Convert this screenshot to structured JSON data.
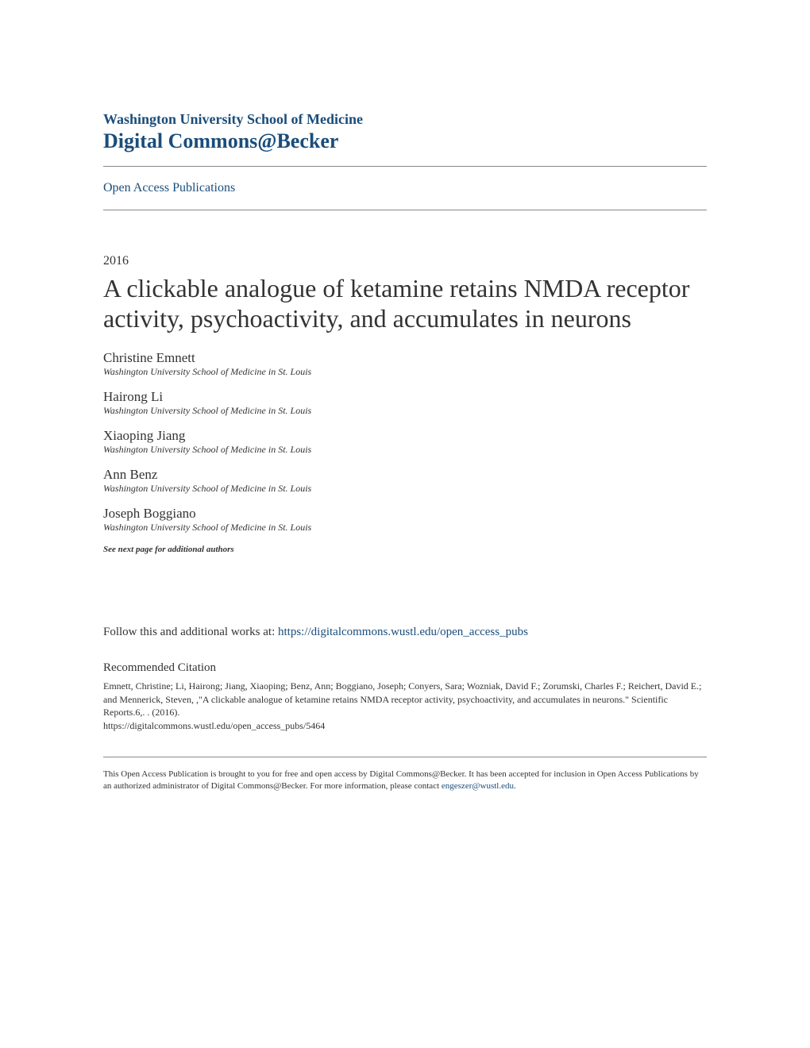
{
  "header": {
    "institution": "Washington University School of Medicine",
    "commons": "Digital Commons@Becker",
    "section": "Open Access Publications"
  },
  "paper": {
    "year": "2016",
    "title": "A clickable analogue of ketamine retains NMDA receptor activity, psychoactivity, and accumulates in neurons",
    "authors": [
      {
        "name": "Christine Emnett",
        "affiliation": "Washington University School of Medicine in St. Louis"
      },
      {
        "name": "Hairong Li",
        "affiliation": "Washington University School of Medicine in St. Louis"
      },
      {
        "name": "Xiaoping Jiang",
        "affiliation": "Washington University School of Medicine in St. Louis"
      },
      {
        "name": "Ann Benz",
        "affiliation": "Washington University School of Medicine in St. Louis"
      },
      {
        "name": "Joseph Boggiano",
        "affiliation": "Washington University School of Medicine in St. Louis"
      }
    ],
    "additional_authors_note": "See next page for additional authors"
  },
  "follow": {
    "prefix": "Follow this and additional works at: ",
    "url": "https://digitalcommons.wustl.edu/open_access_pubs"
  },
  "citation": {
    "heading": "Recommended Citation",
    "text": "Emnett, Christine; Li, Hairong; Jiang, Xiaoping; Benz, Ann; Boggiano, Joseph; Conyers, Sara; Wozniak, David F.; Zorumski, Charles F.; Reichert, David E.; and Mennerick, Steven, ,\"A clickable analogue of ketamine retains NMDA receptor activity, psychoactivity, and accumulates in neurons.\" Scientific Reports.6,. . (2016).",
    "url": "https://digitalcommons.wustl.edu/open_access_pubs/5464"
  },
  "footer": {
    "text_prefix": "This Open Access Publication is brought to you for free and open access by Digital Commons@Becker. It has been accepted for inclusion in Open Access Publications by an authorized administrator of Digital Commons@Becker. For more information, please contact ",
    "email": "engeszer@wustl.edu",
    "text_suffix": "."
  }
}
